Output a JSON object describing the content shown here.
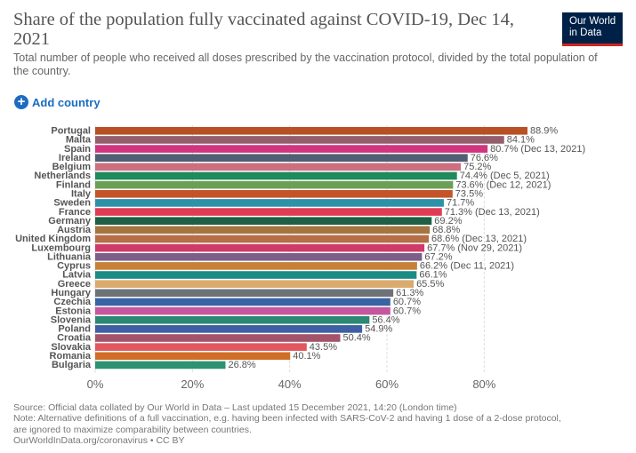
{
  "title": "Share of the population fully vaccinated against COVID-19, Dec 14, 2021",
  "subtitle": "Total number of people who received all doses prescribed by the vaccination protocol, divided by the total population of the country.",
  "logo": {
    "line1": "Our World",
    "line2": "in Data"
  },
  "add_country_label": "Add country",
  "footer": {
    "source": "Source: Official data collated by Our World in Data – Last updated 15 December 2021, 14:20 (London time)",
    "note1": "Note: Alternative definitions of a full vaccination, e.g. having been infected with SARS-CoV-2 and having 1 dose of a 2-dose protocol,",
    "note2": "are ignored to maximize comparability between countries.",
    "license": "OurWorldInData.org/coronavirus • CC BY"
  },
  "chart_data": {
    "type": "bar",
    "orientation": "horizontal",
    "xlim": [
      0,
      90
    ],
    "x_ticks": [
      "0%",
      "20%",
      "40%",
      "60%",
      "80%"
    ],
    "grid": true,
    "categories": [
      "Portugal",
      "Malta",
      "Spain",
      "Ireland",
      "Belgium",
      "Netherlands",
      "Finland",
      "Italy",
      "Sweden",
      "France",
      "Germany",
      "Austria",
      "United Kingdom",
      "Luxembourg",
      "Lithuania",
      "Cyprus",
      "Latvia",
      "Greece",
      "Hungary",
      "Czechia",
      "Estonia",
      "Slovenia",
      "Poland",
      "Croatia",
      "Slovakia",
      "Romania",
      "Bulgaria"
    ],
    "values": [
      88.9,
      84.1,
      80.7,
      76.6,
      75.2,
      74.4,
      73.6,
      73.5,
      71.7,
      71.3,
      69.2,
      68.8,
      68.6,
      67.7,
      67.2,
      66.2,
      66.1,
      65.5,
      61.3,
      60.7,
      60.7,
      56.4,
      54.9,
      50.4,
      43.5,
      40.1,
      26.8
    ],
    "labels": [
      "88.9%",
      "84.1%",
      "80.7% (Dec 13, 2021)",
      "76.6%",
      "75.2%",
      "74.4% (Dec 5, 2021)",
      "73.6% (Dec 12, 2021)",
      "73.5%",
      "71.7%",
      "71.3% (Dec 13, 2021)",
      "69.2%",
      "68.8%",
      "68.6% (Dec 13, 2021)",
      "67.7% (Nov 29, 2021)",
      "67.2%",
      "66.2% (Dec 11, 2021)",
      "66.1%",
      "65.5%",
      "61.3%",
      "60.7%",
      "60.7%",
      "56.4%",
      "54.9%",
      "50.4%",
      "43.5%",
      "40.1%",
      "26.8%"
    ],
    "colors": [
      "#b84f25",
      "#935e6b",
      "#d2347e",
      "#505f73",
      "#cd6f7f",
      "#1f8a5c",
      "#6d9e56",
      "#c4532a",
      "#2d92a8",
      "#df3b55",
      "#1e5f45",
      "#a57541",
      "#b56e46",
      "#cf3a69",
      "#7b5f86",
      "#c78136",
      "#1b8b83",
      "#dbaa6f",
      "#6e7277",
      "#3964a4",
      "#c4579f",
      "#2b8873",
      "#3d5fa4",
      "#a3536a",
      "#e2565f",
      "#cf6f27",
      "#2c9271"
    ]
  }
}
